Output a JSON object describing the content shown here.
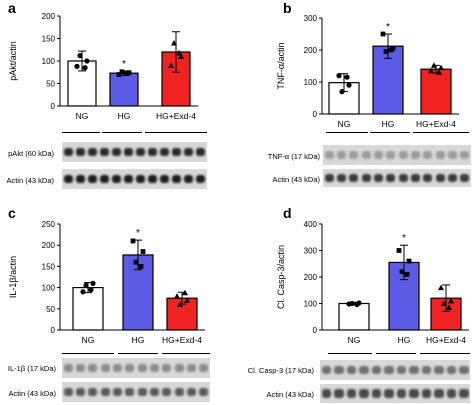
{
  "chart_data": [
    {
      "panel": "a",
      "type": "bar",
      "categories": [
        "NG",
        "HG",
        "HG+Exd-4"
      ],
      "values": [
        100,
        73,
        120
      ],
      "errors": [
        22,
        5,
        45
      ],
      "points": [
        [
          88,
          100,
          112,
          85
        ],
        [
          70,
          74,
          76,
          72
        ],
        [
          90,
          110,
          140,
          118
        ]
      ],
      "significance": [
        "",
        "*",
        ""
      ],
      "ylabel": "pAkt/actin",
      "ylim": [
        0,
        200
      ],
      "yticks": [
        0,
        50,
        100,
        150,
        200
      ],
      "bar_colors": [
        "#ffffff",
        "#5b5be6",
        "#f02222"
      ],
      "blots": [
        {
          "label": "pAkt (60 kDa)"
        },
        {
          "label": "Actin (43 kDa)"
        }
      ]
    },
    {
      "panel": "b",
      "type": "bar",
      "categories": [
        "NG",
        "HG",
        "HG+Exd-4"
      ],
      "values": [
        98,
        212,
        140
      ],
      "errors": [
        28,
        38,
        12
      ],
      "points": [
        [
          120,
          90,
          70,
          115
        ],
        [
          250,
          205,
          195,
          200
        ],
        [
          135,
          145,
          152,
          130
        ]
      ],
      "significance": [
        "",
        "*",
        ""
      ],
      "ylabel": "TNF-α/actin",
      "ylim": [
        0,
        300
      ],
      "yticks": [
        0,
        100,
        200,
        300
      ],
      "bar_colors": [
        "#ffffff",
        "#5b5be6",
        "#f02222"
      ],
      "blots": [
        {
          "label": "TNF-α (17 kDa)"
        },
        {
          "label": "Actin (43 kDa)"
        }
      ]
    },
    {
      "panel": "c",
      "type": "bar",
      "categories": [
        "NG",
        "HG",
        "HG+Exd-4"
      ],
      "values": [
        100,
        177,
        75
      ],
      "errors": [
        12,
        35,
        14
      ],
      "points": [
        [
          90,
          110,
          105,
          95
        ],
        [
          210,
          185,
          160,
          150
        ],
        [
          80,
          70,
          60,
          88
        ]
      ],
      "significance": [
        "",
        "*",
        ""
      ],
      "ylabel": "IL-1β/actin",
      "ylim": [
        0,
        250
      ],
      "yticks": [
        0,
        50,
        100,
        150,
        200,
        250
      ],
      "bar_colors": [
        "#ffffff",
        "#5b5be6",
        "#f02222"
      ],
      "blots": [
        {
          "label": "IL-1β (17 kDa)"
        },
        {
          "label": "Actin (43 kDa)"
        }
      ]
    },
    {
      "panel": "d",
      "type": "bar",
      "categories": [
        "NG",
        "HG",
        "HG+Exd-4"
      ],
      "values": [
        100,
        255,
        120
      ],
      "errors": [
        5,
        65,
        50
      ],
      "points": [
        [
          98,
          102,
          100,
          96
        ],
        [
          300,
          260,
          220,
          210
        ],
        [
          160,
          110,
          100,
          85
        ]
      ],
      "significance": [
        "",
        "*",
        ""
      ],
      "ylabel": "Cl. Casp-3/actin",
      "ylim": [
        0,
        400
      ],
      "yticks": [
        0,
        100,
        200,
        300,
        400
      ],
      "bar_colors": [
        "#ffffff",
        "#5b5be6",
        "#f02222"
      ],
      "blots": [
        {
          "label": "Cl. Casp-3 (17 kDa)"
        },
        {
          "label": "Actin (43 kDa)"
        }
      ]
    }
  ]
}
